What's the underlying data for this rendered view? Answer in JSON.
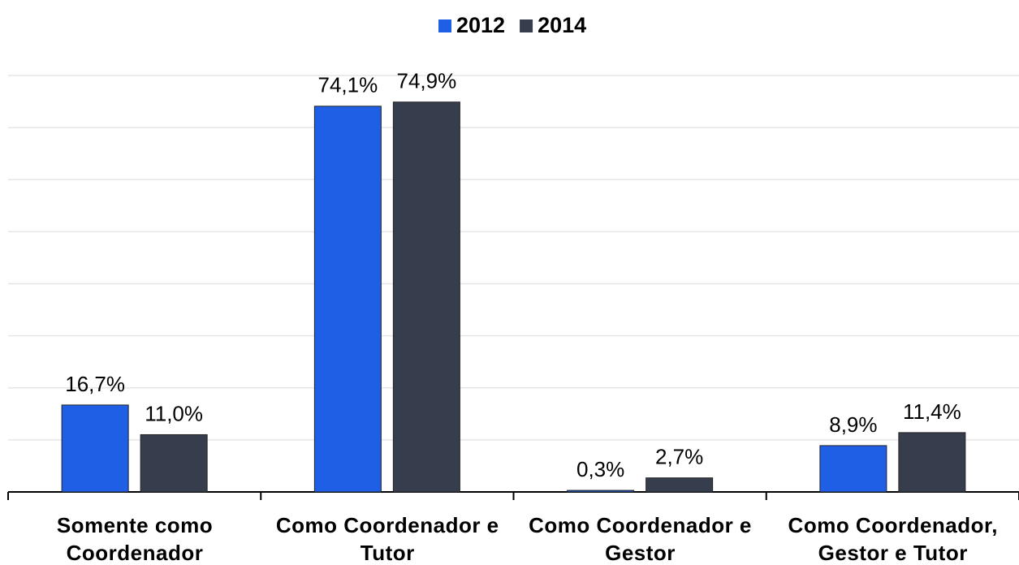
{
  "chart_data": {
    "type": "bar",
    "categories": [
      "Somente como Coordenador",
      "Como Coordenador e Tutor",
      "Como Coordenador e Gestor",
      "Como Coordenador, Gestor e Tutor"
    ],
    "series": [
      {
        "name": "2012",
        "color": "#1f5fe6",
        "values": [
          16.7,
          74.1,
          0.3,
          8.9
        ],
        "value_labels": [
          "16,7%",
          "74,1%",
          "0,3%",
          "8,9%"
        ]
      },
      {
        "name": "2014",
        "color": "#363e4e",
        "values": [
          11.0,
          74.9,
          2.7,
          11.4
        ],
        "value_labels": [
          "11,0%",
          "74,9%",
          "2,7%",
          "11,4%"
        ]
      }
    ],
    "ylim": [
      0,
      80
    ],
    "yticks": [
      0,
      10,
      20,
      30,
      40,
      50,
      60,
      70,
      80
    ],
    "grid": true,
    "legend": "top"
  }
}
